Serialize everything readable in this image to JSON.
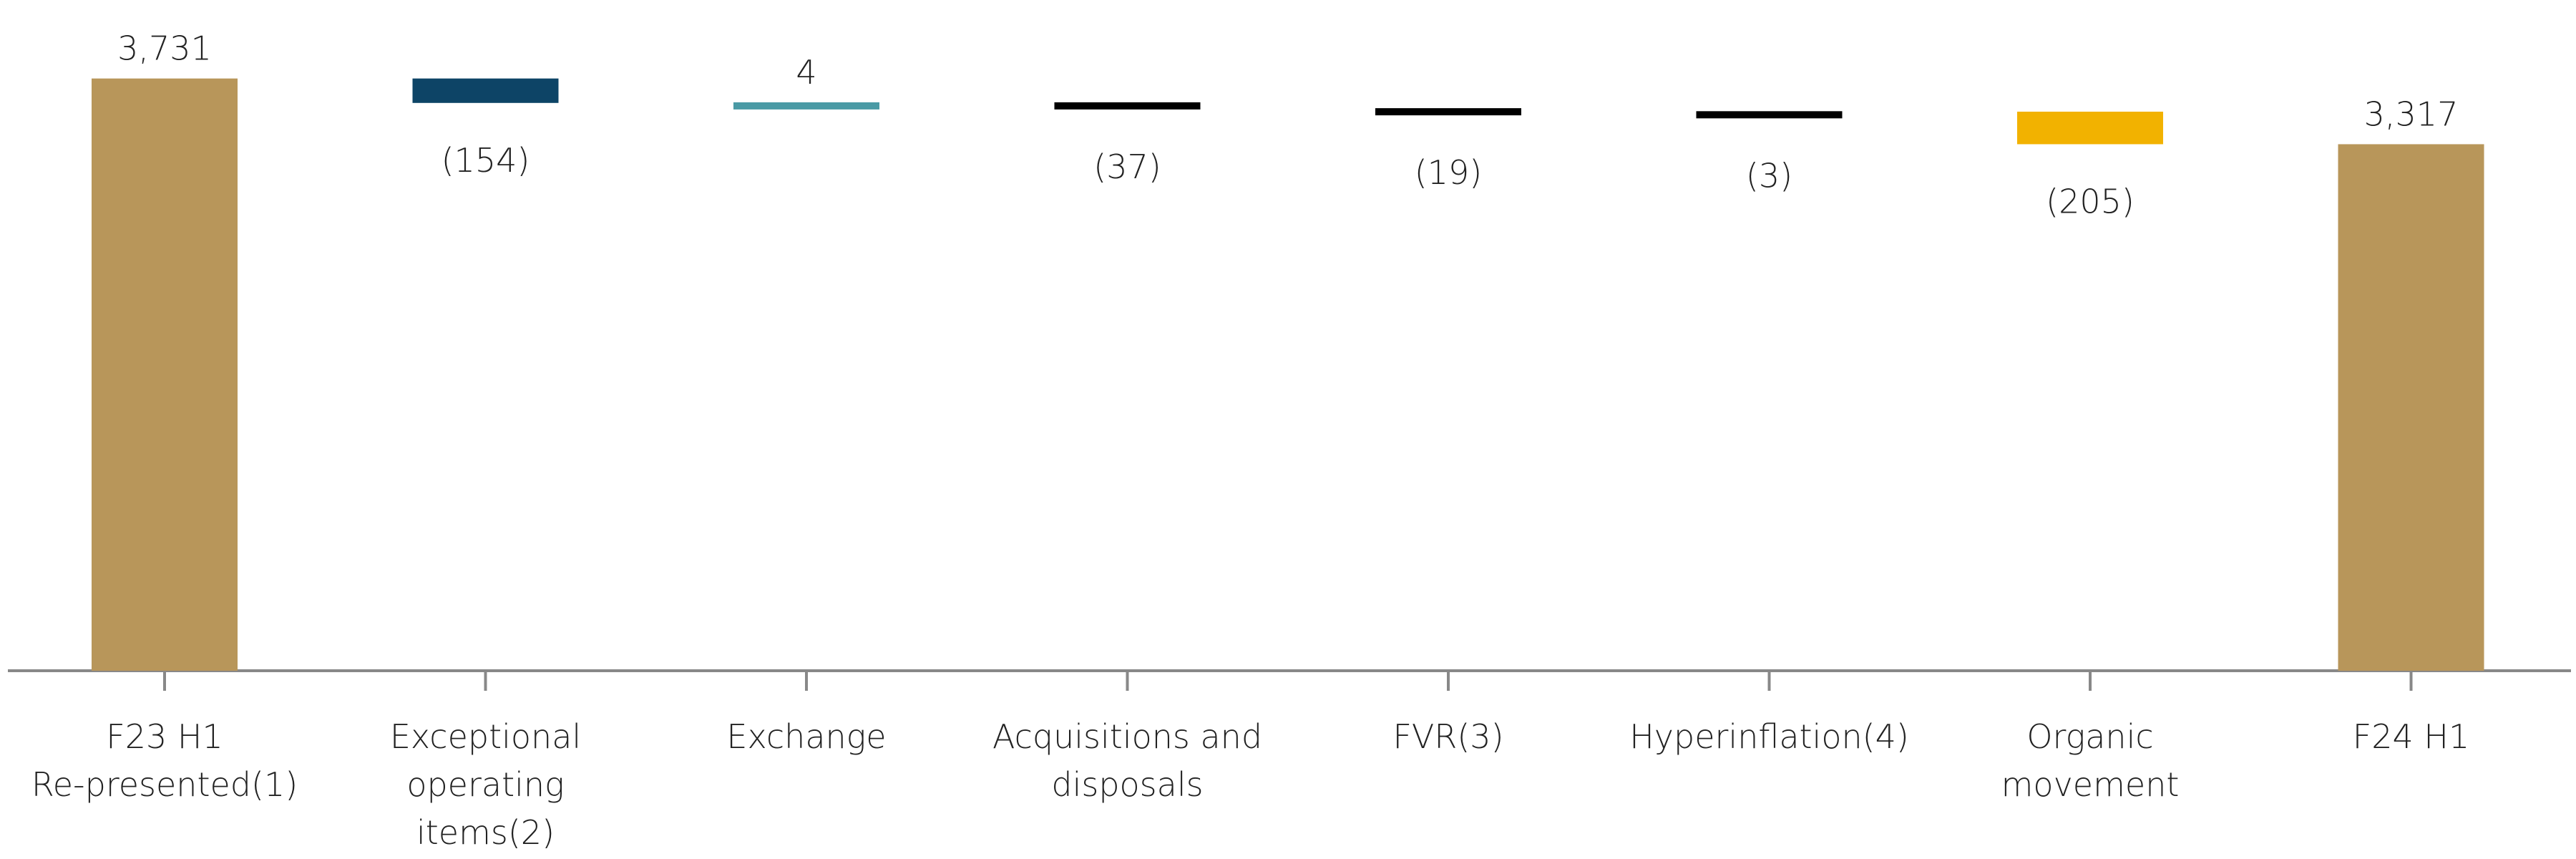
{
  "chart_data": {
    "type": "waterfall",
    "categories": [
      [
        "F23 H1",
        "Re-presented(1)"
      ],
      [
        "Exceptional",
        "operating",
        "items(2)"
      ],
      [
        "Exchange"
      ],
      [
        "Acquisitions and",
        "disposals"
      ],
      [
        "FVR(3)"
      ],
      [
        "Hyperinflation(4)"
      ],
      [
        "Organic",
        "movement"
      ],
      [
        "F24 H1"
      ]
    ],
    "measure": [
      "absolute",
      "relative",
      "relative",
      "relative",
      "relative",
      "relative",
      "relative",
      "absolute"
    ],
    "values": [
      3731,
      -154,
      4,
      -37,
      -19,
      -3,
      -205,
      3317
    ],
    "value_labels": [
      "3,731",
      "(154)",
      "4",
      "(37)",
      "(19)",
      "(3)",
      "(205)",
      "3,317"
    ],
    "colors": [
      "#b8965a",
      "#0d4466",
      "#4a9aa5",
      "#000000",
      "#000000",
      "#000000",
      "#f2b200",
      "#b8965a"
    ],
    "ylim": [
      0,
      4000
    ]
  }
}
